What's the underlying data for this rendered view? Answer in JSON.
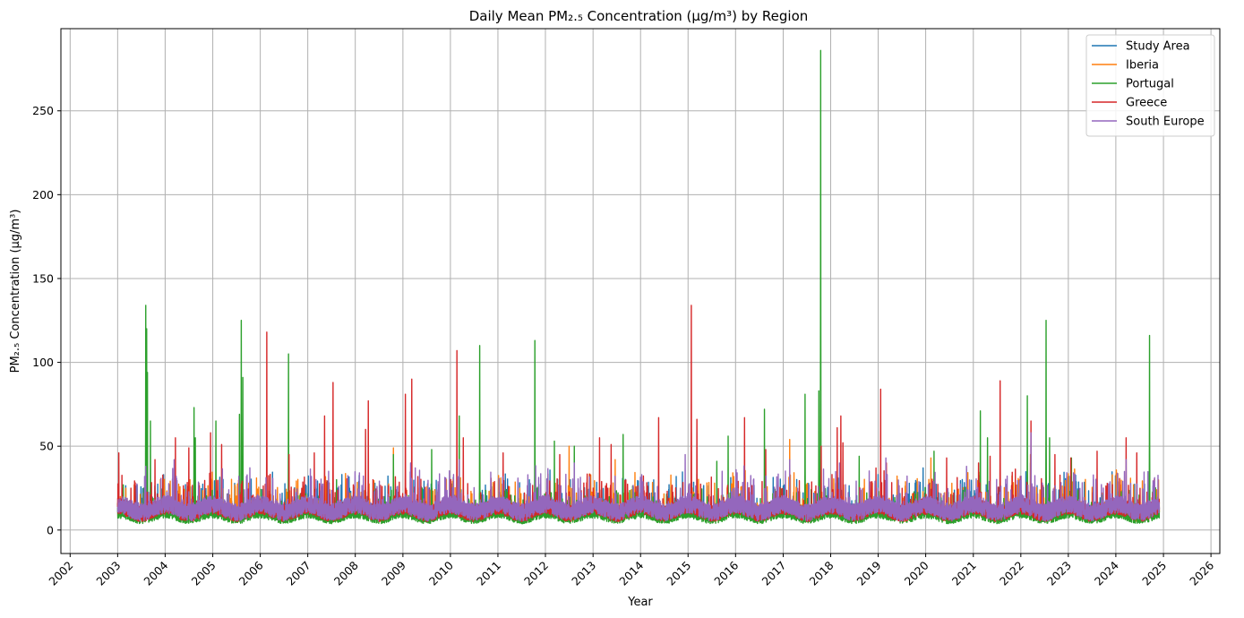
{
  "chart_data": {
    "type": "line",
    "title": "Daily Mean PM₂.₅ Concentration (µg/m³) by Region",
    "xlabel": "Year",
    "ylabel": "PM₂.₅ Concentration (µg/m³)",
    "x_range": [
      "2001-10-22",
      "2026-03-10"
    ],
    "ylim": [
      -14,
      299
    ],
    "x_ticks": [
      "2002",
      "2003",
      "2004",
      "2005",
      "2006",
      "2007",
      "2008",
      "2009",
      "2010",
      "2011",
      "2012",
      "2013",
      "2014",
      "2015",
      "2016",
      "2017",
      "2018",
      "2019",
      "2020",
      "2021",
      "2022",
      "2023",
      "2024",
      "2025",
      "2026"
    ],
    "y_ticks": [
      0,
      50,
      100,
      150,
      200,
      250
    ],
    "grid": true,
    "legend_position": "upper-right",
    "date_range": [
      "2003-01-01",
      "2024-11-30"
    ],
    "series": [
      {
        "name": "Study Area",
        "color": "#1f77b4",
        "baseline": 12,
        "spikes": [
          [
            "2003-08-05",
            30
          ],
          [
            "2007-08-20",
            25
          ],
          [
            "2012-07-10",
            30
          ],
          [
            "2017-10-16",
            40
          ],
          [
            "2022-03-16",
            40
          ]
        ]
      },
      {
        "name": "Iberia",
        "color": "#ff7f0e",
        "baseline": 12,
        "spikes": [
          [
            "2003-08-05",
            40
          ],
          [
            "2004-07-10",
            30
          ],
          [
            "2008-10-20",
            49
          ],
          [
            "2012-07-01",
            50
          ],
          [
            "2013-06-20",
            42
          ],
          [
            "2017-02-20",
            54
          ],
          [
            "2017-10-16",
            50
          ],
          [
            "2020-02-10",
            43
          ],
          [
            "2022-03-16",
            45
          ],
          [
            "2024-11-10",
            24
          ]
        ]
      },
      {
        "name": "Portugal",
        "color": "#2ca02c",
        "baseline": 9,
        "spikes": [
          [
            "2003-08-05",
            134
          ],
          [
            "2003-08-12",
            120
          ],
          [
            "2003-08-18",
            94
          ],
          [
            "2003-09-10",
            65
          ],
          [
            "2004-08-10",
            73
          ],
          [
            "2004-08-20",
            55
          ],
          [
            "2005-01-25",
            65
          ],
          [
            "2005-07-25",
            69
          ],
          [
            "2005-08-08",
            125
          ],
          [
            "2005-08-20",
            91
          ],
          [
            "2006-08-06",
            105
          ],
          [
            "2007-08-10",
            30
          ],
          [
            "2008-10-20",
            45
          ],
          [
            "2009-08-10",
            48
          ],
          [
            "2010-03-10",
            68
          ],
          [
            "2010-08-14",
            110
          ],
          [
            "2011-10-12",
            113
          ],
          [
            "2012-03-10",
            53
          ],
          [
            "2012-08-10",
            50
          ],
          [
            "2013-08-20",
            57
          ],
          [
            "2015-08-10",
            41
          ],
          [
            "2015-11-05",
            56
          ],
          [
            "2016-08-10",
            72
          ],
          [
            "2017-06-18",
            81
          ],
          [
            "2017-10-02",
            83
          ],
          [
            "2017-10-16",
            286
          ],
          [
            "2018-08-08",
            44
          ],
          [
            "2020-03-05",
            47
          ],
          [
            "2020-11-10",
            36
          ],
          [
            "2021-02-24",
            71
          ],
          [
            "2021-04-20",
            55
          ],
          [
            "2022-02-20",
            80
          ],
          [
            "2022-07-14",
            125
          ],
          [
            "2022-08-10",
            55
          ],
          [
            "2023-01-25",
            43
          ],
          [
            "2024-09-16",
            116
          ]
        ]
      },
      {
        "name": "Greece",
        "color": "#d62728",
        "baseline": 12,
        "spikes": [
          [
            "2003-01-10",
            46
          ],
          [
            "2003-10-15",
            42
          ],
          [
            "2004-03-20",
            55
          ],
          [
            "2004-07-01",
            49
          ],
          [
            "2004-12-15",
            58
          ],
          [
            "2005-03-10",
            51
          ],
          [
            "2006-02-20",
            118
          ],
          [
            "2006-08-10",
            45
          ],
          [
            "2007-02-20",
            46
          ],
          [
            "2007-05-10",
            68
          ],
          [
            "2007-07-14",
            88
          ],
          [
            "2008-03-20",
            60
          ],
          [
            "2008-04-10",
            77
          ],
          [
            "2009-01-20",
            81
          ],
          [
            "2009-03-10",
            90
          ],
          [
            "2010-02-20",
            107
          ],
          [
            "2010-04-10",
            55
          ],
          [
            "2011-02-10",
            46
          ],
          [
            "2012-04-20",
            45
          ],
          [
            "2013-02-20",
            55
          ],
          [
            "2013-05-20",
            51
          ],
          [
            "2014-05-20",
            67
          ],
          [
            "2015-01-26",
            134
          ],
          [
            "2015-03-10",
            66
          ],
          [
            "2016-03-10",
            67
          ],
          [
            "2016-08-20",
            48
          ],
          [
            "2017-10-20",
            50
          ],
          [
            "2018-02-20",
            61
          ],
          [
            "2018-03-20",
            68
          ],
          [
            "2018-04-05",
            52
          ],
          [
            "2019-01-20",
            84
          ],
          [
            "2019-03-05",
            40
          ],
          [
            "2020-06-10",
            43
          ],
          [
            "2021-02-10",
            40
          ],
          [
            "2021-05-10",
            44
          ],
          [
            "2021-07-26",
            89
          ],
          [
            "2022-03-20",
            65
          ],
          [
            "2022-09-20",
            45
          ],
          [
            "2023-01-20",
            43
          ],
          [
            "2023-08-10",
            47
          ],
          [
            "2024-03-20",
            55
          ],
          [
            "2024-06-10",
            46
          ]
        ]
      },
      {
        "name": "South Europe",
        "color": "#9467bd",
        "baseline": 13,
        "spikes": [
          [
            "2003-08-05",
            38
          ],
          [
            "2004-03-10",
            42
          ],
          [
            "2005-07-20",
            32
          ],
          [
            "2007-06-10",
            35
          ],
          [
            "2009-03-01",
            40
          ],
          [
            "2010-03-10",
            42
          ],
          [
            "2012-08-10",
            40
          ],
          [
            "2014-01-10",
            33
          ],
          [
            "2014-12-10",
            45
          ],
          [
            "2017-02-20",
            42
          ],
          [
            "2018-03-10",
            40
          ],
          [
            "2019-03-01",
            43
          ],
          [
            "2020-11-10",
            38
          ],
          [
            "2022-03-20",
            58
          ],
          [
            "2024-03-20",
            42
          ]
        ]
      }
    ]
  }
}
